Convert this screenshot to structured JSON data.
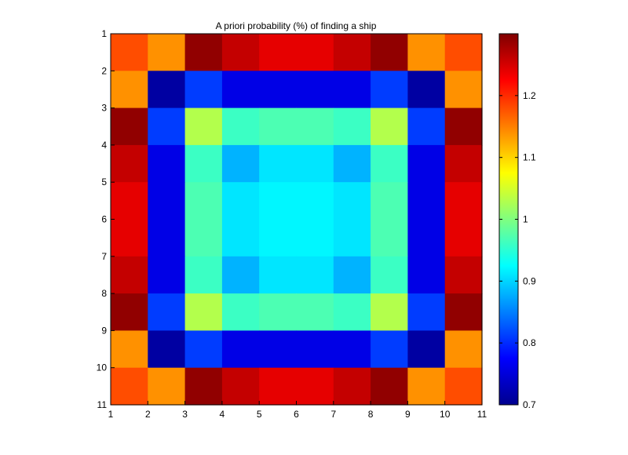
{
  "chart_data": {
    "type": "heatmap",
    "title": "A priori probability (%) of finding a ship",
    "xlabel": "",
    "ylabel": "",
    "x_ticks": [
      "1",
      "2",
      "3",
      "4",
      "5",
      "6",
      "7",
      "8",
      "9",
      "10",
      "11"
    ],
    "y_ticks": [
      "1",
      "2",
      "3",
      "4",
      "5",
      "6",
      "7",
      "8",
      "9",
      "10",
      "11"
    ],
    "xlim": [
      1,
      11
    ],
    "ylim": [
      1,
      11
    ],
    "y_direction": "top-to-bottom",
    "colormap": "jet",
    "clim": [
      0.7,
      1.3
    ],
    "colorbar_ticks": [
      "0.7",
      "0.8",
      "0.9",
      "1",
      "1.1",
      "1.2"
    ],
    "values": [
      [
        1.18,
        1.14,
        1.29,
        1.26,
        1.24,
        1.24,
        1.26,
        1.29,
        1.14,
        1.18
      ],
      [
        1.14,
        0.72,
        0.81,
        0.76,
        0.76,
        0.76,
        0.76,
        0.81,
        0.72,
        1.14
      ],
      [
        1.29,
        0.81,
        1.03,
        0.96,
        0.97,
        0.97,
        0.96,
        1.03,
        0.81,
        1.29
      ],
      [
        1.26,
        0.76,
        0.96,
        0.88,
        0.91,
        0.91,
        0.88,
        0.96,
        0.76,
        1.26
      ],
      [
        1.24,
        0.76,
        0.97,
        0.91,
        0.92,
        0.92,
        0.91,
        0.97,
        0.76,
        1.24
      ],
      [
        1.24,
        0.76,
        0.97,
        0.91,
        0.92,
        0.92,
        0.91,
        0.97,
        0.76,
        1.24
      ],
      [
        1.26,
        0.76,
        0.96,
        0.88,
        0.91,
        0.91,
        0.88,
        0.96,
        0.76,
        1.26
      ],
      [
        1.29,
        0.81,
        1.03,
        0.96,
        0.97,
        0.97,
        0.96,
        1.03,
        0.81,
        1.29
      ],
      [
        1.14,
        0.72,
        0.81,
        0.76,
        0.76,
        0.76,
        0.76,
        0.81,
        0.72,
        1.14
      ],
      [
        1.18,
        1.14,
        1.29,
        1.26,
        1.24,
        1.24,
        1.26,
        1.29,
        1.14,
        1.18
      ]
    ],
    "grid": false,
    "colorbar_position": "right"
  }
}
